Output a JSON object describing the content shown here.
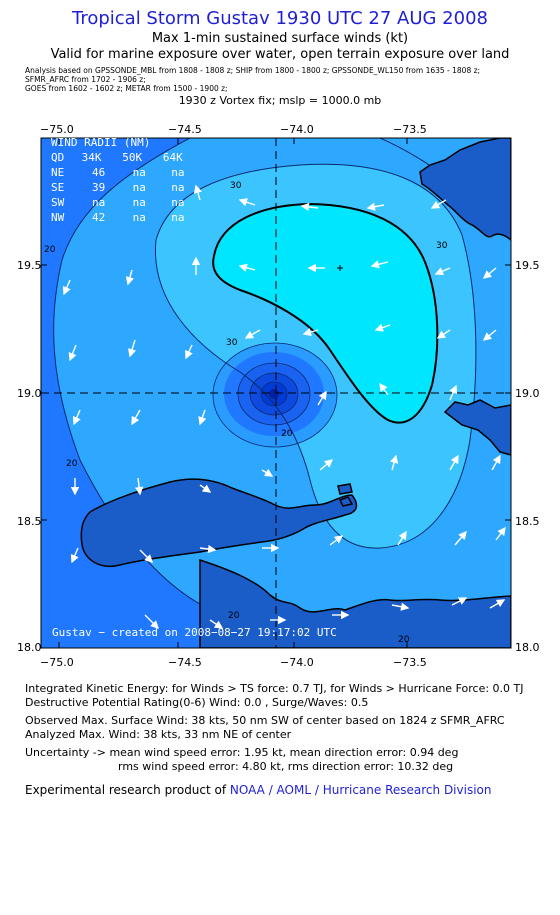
{
  "header": {
    "title": "Tropical Storm Gustav 1930 UTC 27 AUG 2008",
    "subtitle1": "Max 1-min sustained surface winds (kt)",
    "subtitle2": "Valid for marine exposure over water, open terrain exposure over land",
    "analysis_line1": "Analysis based on   GPSSONDE_MBL from 1808 - 1808 z;  SHIP from 1800 - 1800 z;  GPSSONDE_WL150 from 1635 - 1808 z;",
    "analysis_line2": "SFMR_AFRC from  1702 - 1906 z;",
    "analysis_line3": "GOES from 1602 - 1602 z;   METAR from 1500 - 1900 z;",
    "vortex_fix": "1930 z Vortex fix; mslp = 1000.0 mb"
  },
  "map": {
    "lon_ticks": [
      "−75.0",
      "−74.5",
      "−74.0",
      "−73.5"
    ],
    "lat_ticks": [
      "19.5",
      "19.0",
      "18.5",
      "18.0"
    ],
    "contour_labels": [
      "30",
      "30",
      "30",
      "20",
      "20",
      "20",
      "20",
      "20"
    ],
    "colors": {
      "ocean_band_20": "#1f78ff",
      "band_20_30": "#2ea8ff",
      "band_30_38": "#00e6ff",
      "core_dark": "#003bd6",
      "land": "#1a5cc8"
    },
    "wind_radii": {
      "title": "WIND RADII (NM)",
      "header": [
        "QD",
        "34K",
        "50K",
        "64K"
      ],
      "rows": [
        [
          "NE",
          "46",
          "na",
          "na"
        ],
        [
          "SE",
          "39",
          "na",
          "na"
        ],
        [
          "SW",
          "na",
          "na",
          "na"
        ],
        [
          "NW",
          "42",
          "na",
          "na"
        ]
      ]
    },
    "footer": "Gustav − created on 2008−08−27 19:17:02 UTC"
  },
  "info": {
    "ike": "Integrated Kinetic Energy:  for Winds > TS force: 0.7 TJ,  for Winds > Hurricane Force: 0.0 TJ",
    "dpr": "Destructive Potential Rating(0-6)   Wind: 0.0 , Surge/Waves: 0.5",
    "obs_max": "Observed Max. Surface Wind: 38 kts, 50 nm SW of center based on 1824 z SFMR_AFRC",
    "analyzed_max": "Analyzed Max. Wind: 38 kts, 33 nm NE of center",
    "uncert1": "Uncertainty -> mean wind speed error: 1.95 kt,   mean direction error: 0.94 deg",
    "uncert2": "rms wind speed error: 4.80 kt,   rms direction error: 10.32 deg",
    "credit_prefix": "Experimental research product of ",
    "credit_org": "NOAA / AOML / Hurricane Research Division"
  }
}
